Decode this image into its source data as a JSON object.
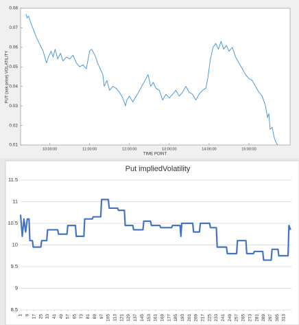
{
  "chart_data": [
    {
      "type": "line",
      "ylabel": "PUT (ask price) VOLATILITY",
      "xlabel": "TIME POINT",
      "xlim": [
        556,
        962
      ],
      "xticks": [
        {
          "value": 600,
          "label": "10:00:00"
        },
        {
          "value": 660,
          "label": "11:00:00"
        },
        {
          "value": 720,
          "label": "12:00:00"
        },
        {
          "value": 780,
          "label": "13:00:00"
        },
        {
          "value": 840,
          "label": "14:00:00"
        },
        {
          "value": 900,
          "label": "15:00:00"
        }
      ],
      "ylim": [
        0.01,
        0.08
      ],
      "yticks": [
        0.01,
        0.02,
        0.03,
        0.04,
        0.05,
        0.06,
        0.07,
        0.08
      ],
      "grid": false,
      "series": [
        {
          "name": "PUT (ask price) VOLATILITY",
          "color": "#3b8fd4",
          "x": [
            564,
            566,
            568,
            572,
            580,
            590,
            595,
            598,
            602,
            605,
            608,
            612,
            616,
            620,
            625,
            630,
            635,
            640,
            645,
            650,
            655,
            660,
            663,
            668,
            672,
            676,
            680,
            682,
            686,
            690,
            695,
            700,
            705,
            710,
            714,
            716,
            720,
            725,
            732,
            745,
            748,
            752,
            756,
            760,
            765,
            770,
            775,
            780,
            785,
            790,
            795,
            800,
            805,
            810,
            815,
            820,
            825,
            830,
            835,
            838,
            842,
            846,
            850,
            854,
            858,
            862,
            866,
            870,
            875,
            880,
            885,
            890,
            895,
            900,
            905,
            910,
            915,
            920,
            925,
            928,
            930,
            932,
            935,
            938,
            940,
            943
          ],
          "values": [
            0.077,
            0.075,
            0.076,
            0.072,
            0.065,
            0.058,
            0.052,
            0.055,
            0.058,
            0.055,
            0.059,
            0.054,
            0.057,
            0.053,
            0.055,
            0.054,
            0.056,
            0.052,
            0.05,
            0.051,
            0.049,
            0.058,
            0.059,
            0.056,
            0.052,
            0.049,
            0.046,
            0.04,
            0.043,
            0.038,
            0.04,
            0.039,
            0.037,
            0.034,
            0.03,
            0.033,
            0.035,
            0.032,
            0.036,
            0.044,
            0.046,
            0.04,
            0.042,
            0.039,
            0.038,
            0.033,
            0.036,
            0.034,
            0.036,
            0.038,
            0.035,
            0.037,
            0.04,
            0.037,
            0.036,
            0.033,
            0.036,
            0.038,
            0.039,
            0.044,
            0.054,
            0.06,
            0.062,
            0.059,
            0.063,
            0.059,
            0.061,
            0.058,
            0.06,
            0.055,
            0.052,
            0.049,
            0.046,
            0.044,
            0.043,
            0.04,
            0.037,
            0.035,
            0.03,
            0.024,
            0.026,
            0.018,
            0.019,
            0.014,
            0.012,
            0.01
          ]
        }
      ]
    },
    {
      "type": "line",
      "title": "Put impliedVolatility",
      "xlim": [
        1,
        322
      ],
      "xticks": [
        1,
        9,
        17,
        25,
        33,
        41,
        49,
        57,
        65,
        73,
        81,
        89,
        97,
        105,
        113,
        121,
        129,
        137,
        145,
        153,
        161,
        169,
        177,
        185,
        193,
        201,
        209,
        217,
        225,
        233,
        241,
        249,
        257,
        265,
        273,
        281,
        289,
        297,
        305,
        313
      ],
      "ylim": [
        8.5,
        11.5
      ],
      "yticks": [
        8.5,
        9,
        9.5,
        10,
        10.5,
        11,
        11.5
      ],
      "grid": true,
      "series": [
        {
          "name": "Put impliedVolatility",
          "color": "#4472c4",
          "x": [
            1,
            3,
            5,
            7,
            9,
            11,
            12,
            15,
            16,
            25,
            26,
            32,
            33,
            45,
            46,
            56,
            57,
            66,
            67,
            76,
            77,
            86,
            87,
            96,
            97,
            105,
            106,
            116,
            117,
            124,
            125,
            134,
            135,
            146,
            147,
            155,
            156,
            166,
            167,
            180,
            181,
            190,
            191,
            192,
            205,
            206,
            213,
            214,
            225,
            226,
            233,
            234,
            245,
            246,
            257,
            258,
            268,
            269,
            277,
            278,
            288,
            289,
            298,
            299,
            306,
            307,
            318,
            319,
            321
          ],
          "values": [
            10.7,
            10.2,
            10.6,
            10.3,
            10.6,
            10.6,
            10.1,
            10.1,
            9.95,
            9.95,
            10.1,
            10.1,
            10.35,
            10.35,
            10.25,
            10.25,
            10.45,
            10.45,
            10.2,
            10.2,
            10.6,
            10.6,
            10.65,
            10.65,
            11.05,
            11.05,
            10.85,
            10.85,
            10.8,
            10.8,
            10.45,
            10.45,
            10.35,
            10.35,
            10.55,
            10.55,
            10.45,
            10.45,
            10.4,
            10.4,
            10.45,
            10.45,
            10.2,
            10.5,
            10.5,
            10.3,
            10.3,
            10.5,
            10.5,
            10.4,
            10.4,
            9.95,
            9.95,
            9.8,
            9.8,
            10.1,
            10.1,
            9.8,
            9.8,
            9.85,
            9.85,
            9.65,
            9.65,
            9.9,
            9.9,
            9.75,
            9.75,
            10.45,
            10.35
          ]
        }
      ]
    }
  ]
}
